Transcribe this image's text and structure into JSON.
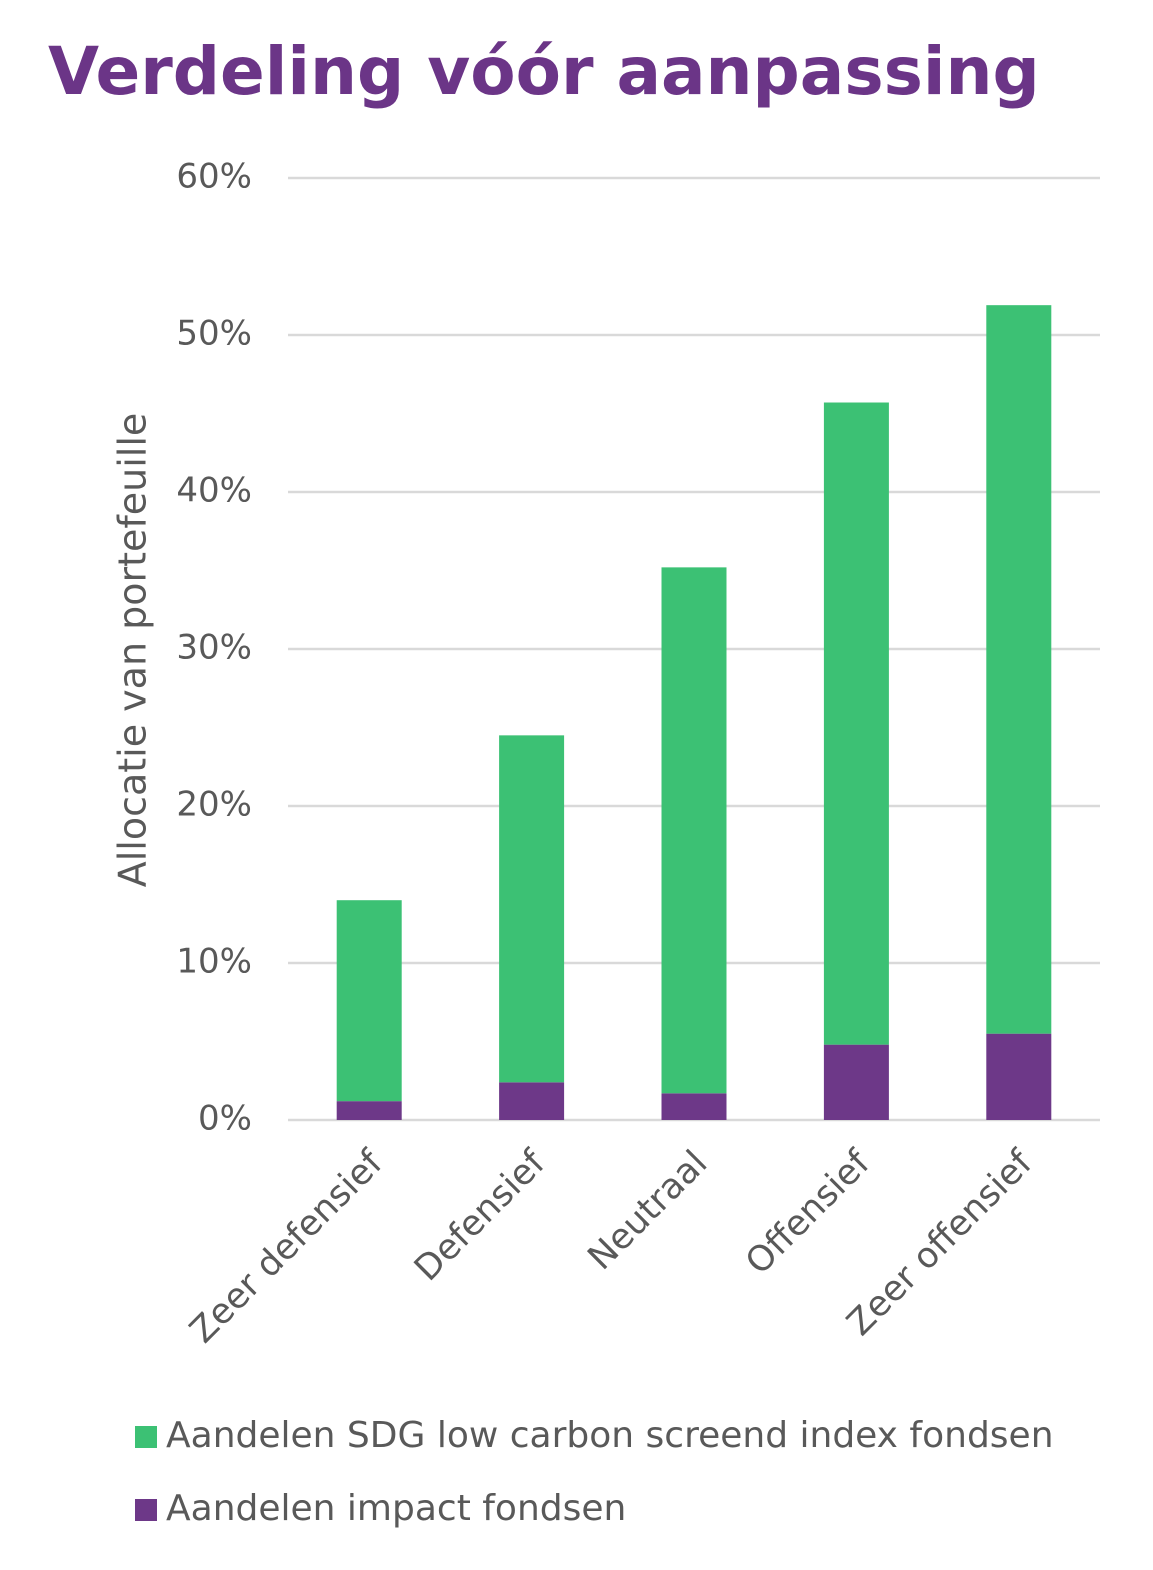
{
  "chart_data": {
    "type": "stacked_bar",
    "title": "Verdeling vóór aanpassing",
    "y_label": "Allocatie van portefeuille",
    "categories": [
      "Zeer defensief",
      "Defensief",
      "Neutraal",
      "Offensief",
      "Zeer offensief"
    ],
    "series": [
      {
        "name": "Aandelen SDG low carbon screend index fondsen",
        "color": "#3cc174",
        "values": [
          12.8,
          22.1,
          33.5,
          40.9,
          46.4
        ]
      },
      {
        "name": "Aandelen impact fondsen",
        "color": "#6d3888",
        "values": [
          1.2,
          2.4,
          1.7,
          4.8,
          5.5
        ]
      }
    ],
    "ylim": [
      0,
      60
    ],
    "yticks": [
      {
        "value": 0,
        "label": "0%"
      },
      {
        "value": 10,
        "label": "10%"
      },
      {
        "value": 20,
        "label": "20%"
      },
      {
        "value": 30,
        "label": "30%"
      },
      {
        "value": 40,
        "label": "40%"
      },
      {
        "value": 50,
        "label": "50%"
      },
      {
        "value": 60,
        "label": "60%"
      }
    ],
    "grid": true
  }
}
